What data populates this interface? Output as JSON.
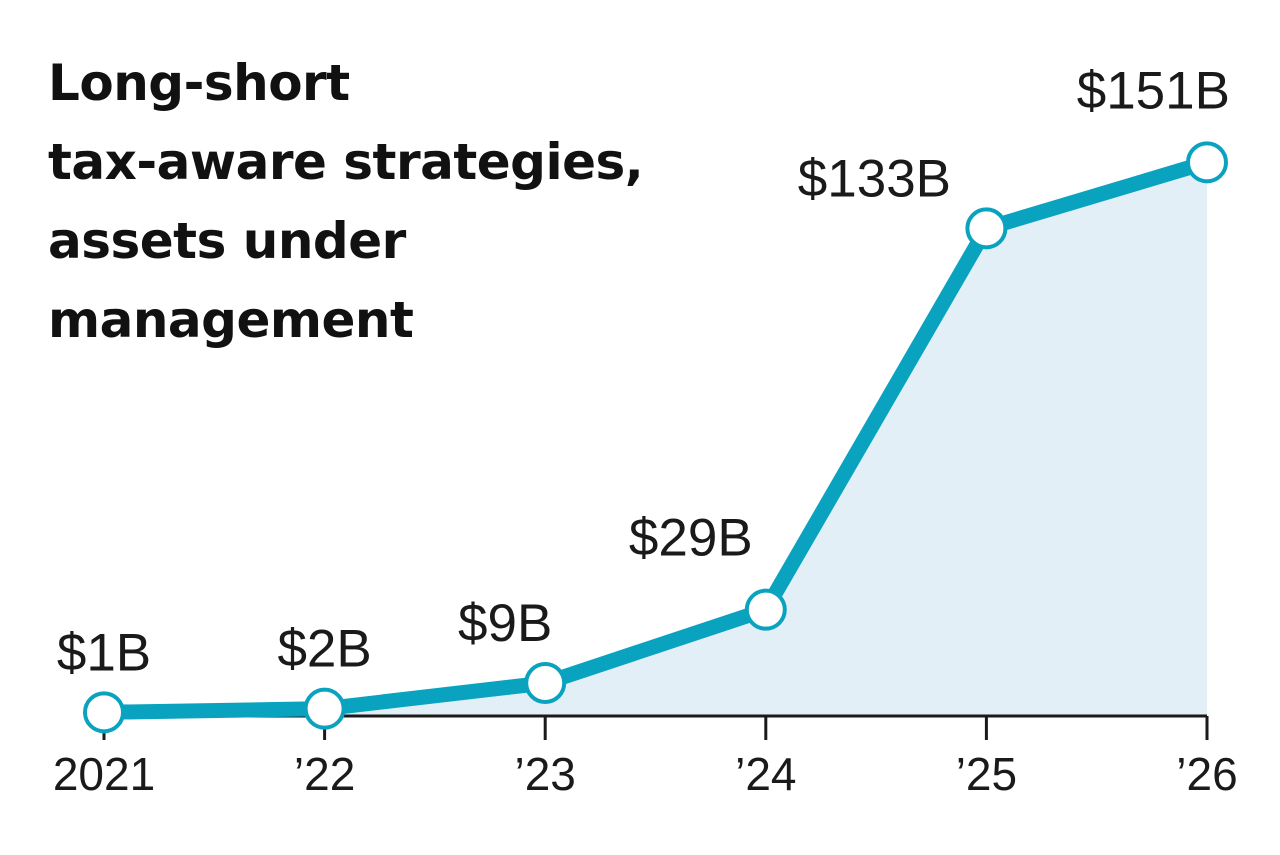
{
  "chart_data": {
    "type": "area",
    "title_lines": [
      "Long-short",
      "tax-aware strategies,",
      "assets under",
      "management"
    ],
    "categories": [
      "2021",
      "’22",
      "’23",
      "’24",
      "’25",
      "’26"
    ],
    "values": [
      1,
      2,
      9,
      29,
      133,
      151
    ],
    "data_labels": [
      "$1B",
      "$2B",
      "$9B",
      "$29B",
      "$133B",
      "$151B"
    ],
    "ylim": [
      0,
      180
    ],
    "grid": false,
    "legend": "none",
    "colors": {
      "line": "#0aa3bf",
      "area": "#e2eff6",
      "axis": "#1a1a1a",
      "marker_fill": "#ffffff",
      "text": "#1a1a1a"
    }
  }
}
